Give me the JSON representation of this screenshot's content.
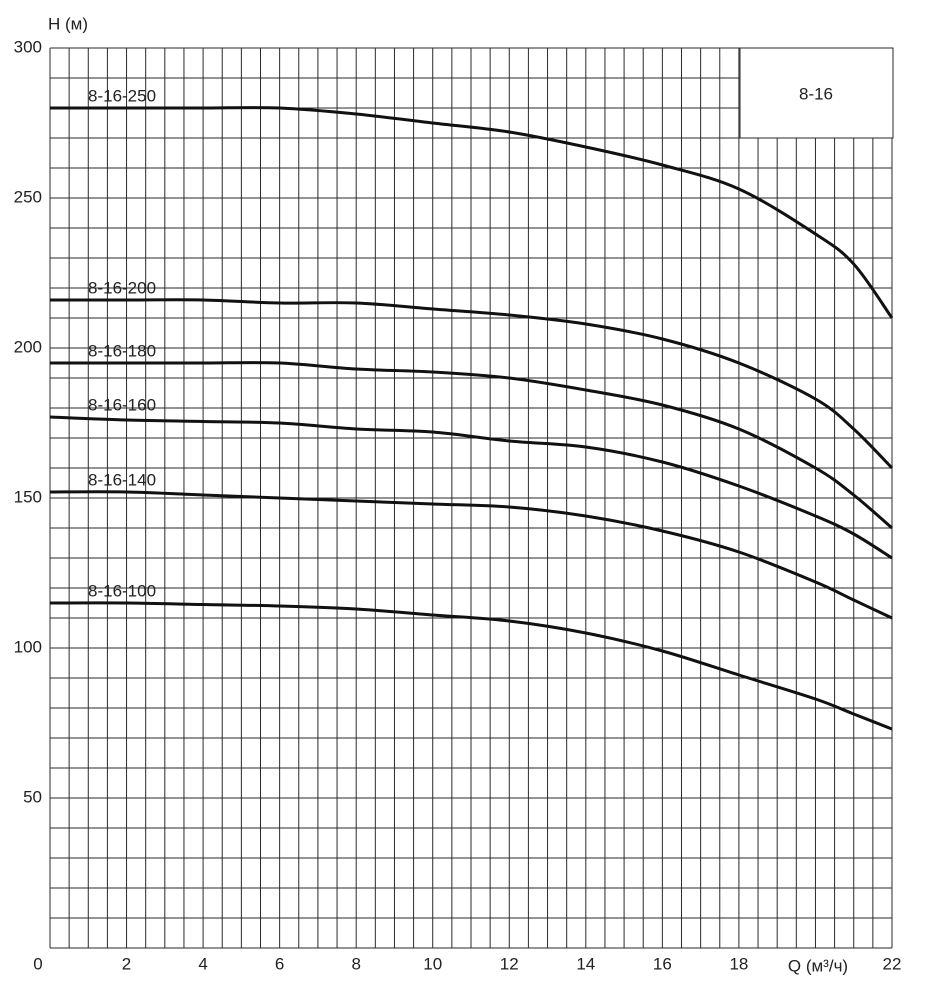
{
  "chart_data": {
    "type": "line",
    "x_label": "Q (м³/ч)",
    "y_label": "H (м)",
    "inset_label": "8-16",
    "x": [
      0,
      2,
      4,
      6,
      8,
      10,
      12,
      14,
      16,
      18,
      20,
      21,
      22
    ],
    "series": [
      {
        "name": "8-16-250",
        "color": "#111111",
        "values": [
          280,
          280,
          280,
          280,
          278,
          275,
          272,
          267,
          261,
          253,
          238,
          228,
          210
        ]
      },
      {
        "name": "8-16-200",
        "color": "#111111",
        "values": [
          216,
          216,
          216,
          215,
          215,
          213,
          211,
          208,
          203,
          195,
          183,
          173,
          160
        ]
      },
      {
        "name": "8-16-180",
        "color": "#111111",
        "values": [
          195,
          195,
          195,
          195,
          193,
          192,
          190,
          186,
          181,
          173,
          160,
          151,
          140
        ]
      },
      {
        "name": "8-16-160",
        "color": "#111111",
        "values": [
          177,
          176,
          175.5,
          175,
          173,
          172,
          169,
          167,
          162,
          154,
          144,
          138,
          130
        ]
      },
      {
        "name": "8-16-140",
        "color": "#111111",
        "values": [
          152,
          152,
          151,
          150,
          149,
          148,
          147,
          144,
          139,
          132,
          122,
          116,
          110
        ]
      },
      {
        "name": "8-16-100",
        "color": "#111111",
        "values": [
          115,
          115,
          114.5,
          114,
          113,
          111,
          109,
          105,
          99,
          91,
          83,
          78,
          73
        ]
      }
    ],
    "xlim": [
      0,
      22
    ],
    "ylim": [
      0,
      300
    ],
    "xticks": [
      0,
      2,
      4,
      6,
      8,
      10,
      12,
      14,
      16,
      18,
      22
    ],
    "yticks": [
      50,
      100,
      150,
      200,
      250,
      300
    ],
    "grid": {
      "x_step": 0.5,
      "y_step": 10
    }
  }
}
